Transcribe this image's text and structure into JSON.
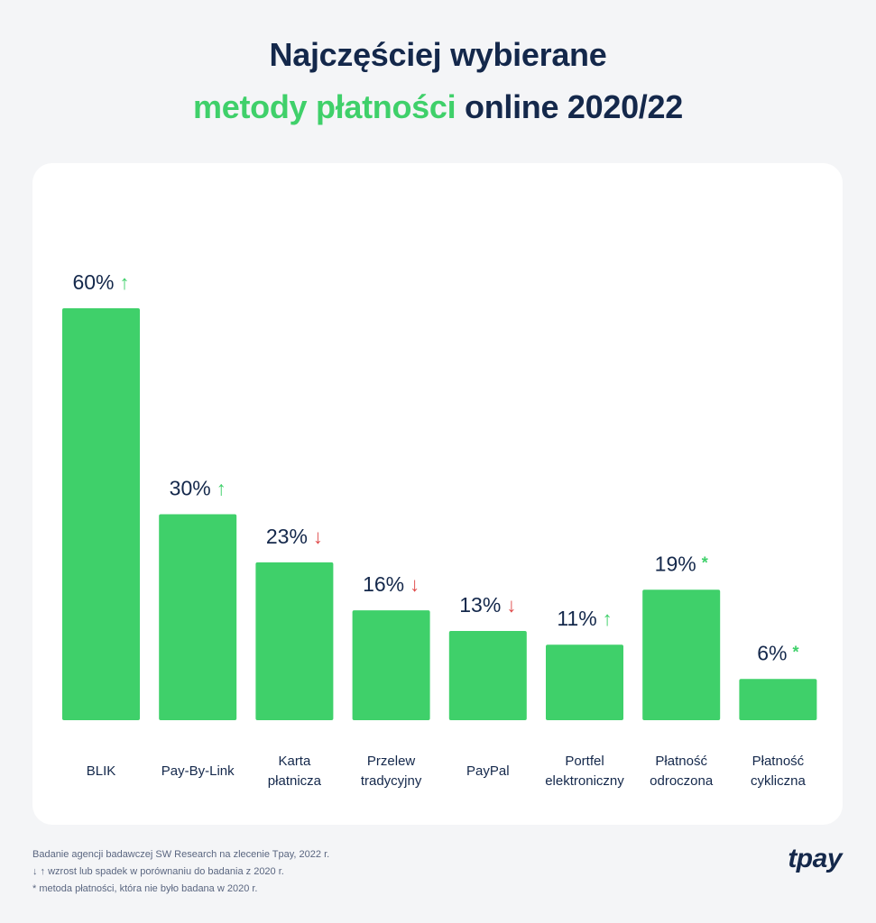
{
  "header": {
    "title_line1": "Najczęściej wybierane",
    "title_line2_accent": "metody płatności",
    "title_line2_rest": " online 2020/22"
  },
  "colors": {
    "bar": "#3fd06a",
    "accent": "#3fd06a",
    "text": "#14284b",
    "up": "#3fd06a",
    "down": "#e04a4a",
    "new": "#3fd06a"
  },
  "chart_data": {
    "type": "bar",
    "categories": [
      "BLIK",
      "Pay-By-Link",
      "Karta płatnicza",
      "Przelew tradycyjny",
      "PayPal",
      "Portfel elektroniczny",
      "Płatność odroczona",
      "Płatność cykliczna"
    ],
    "category_lines": [
      [
        "BLIK"
      ],
      [
        "Pay-By-Link"
      ],
      [
        "Karta",
        "płatnicza"
      ],
      [
        "Przelew",
        "tradycyjny"
      ],
      [
        "PayPal"
      ],
      [
        "Portfel",
        "elektroniczny"
      ],
      [
        "Płatność",
        "odroczona"
      ],
      [
        "Płatność",
        "cykliczna"
      ]
    ],
    "values": [
      60,
      30,
      23,
      16,
      13,
      11,
      19,
      6
    ],
    "value_labels": [
      "60%",
      "30%",
      "23%",
      "16%",
      "13%",
      "11%",
      "19%",
      "6%"
    ],
    "trend": [
      "up",
      "up",
      "down",
      "down",
      "down",
      "up",
      "new",
      "new"
    ],
    "trend_symbols": {
      "up": "↑",
      "down": "↓",
      "new": "*"
    },
    "unit": "%",
    "ylim": [
      0,
      60
    ],
    "grid": false,
    "legend": "none"
  },
  "footnotes": [
    "Badanie agencji badawczej SW Research na zlecenie Tpay, 2022 r.",
    "↓ ↑ wzrost lub spadek w porównaniu do badania z 2020 r.",
    "* metoda płatności, która nie było badana w 2020 r."
  ],
  "brand": "tpay"
}
